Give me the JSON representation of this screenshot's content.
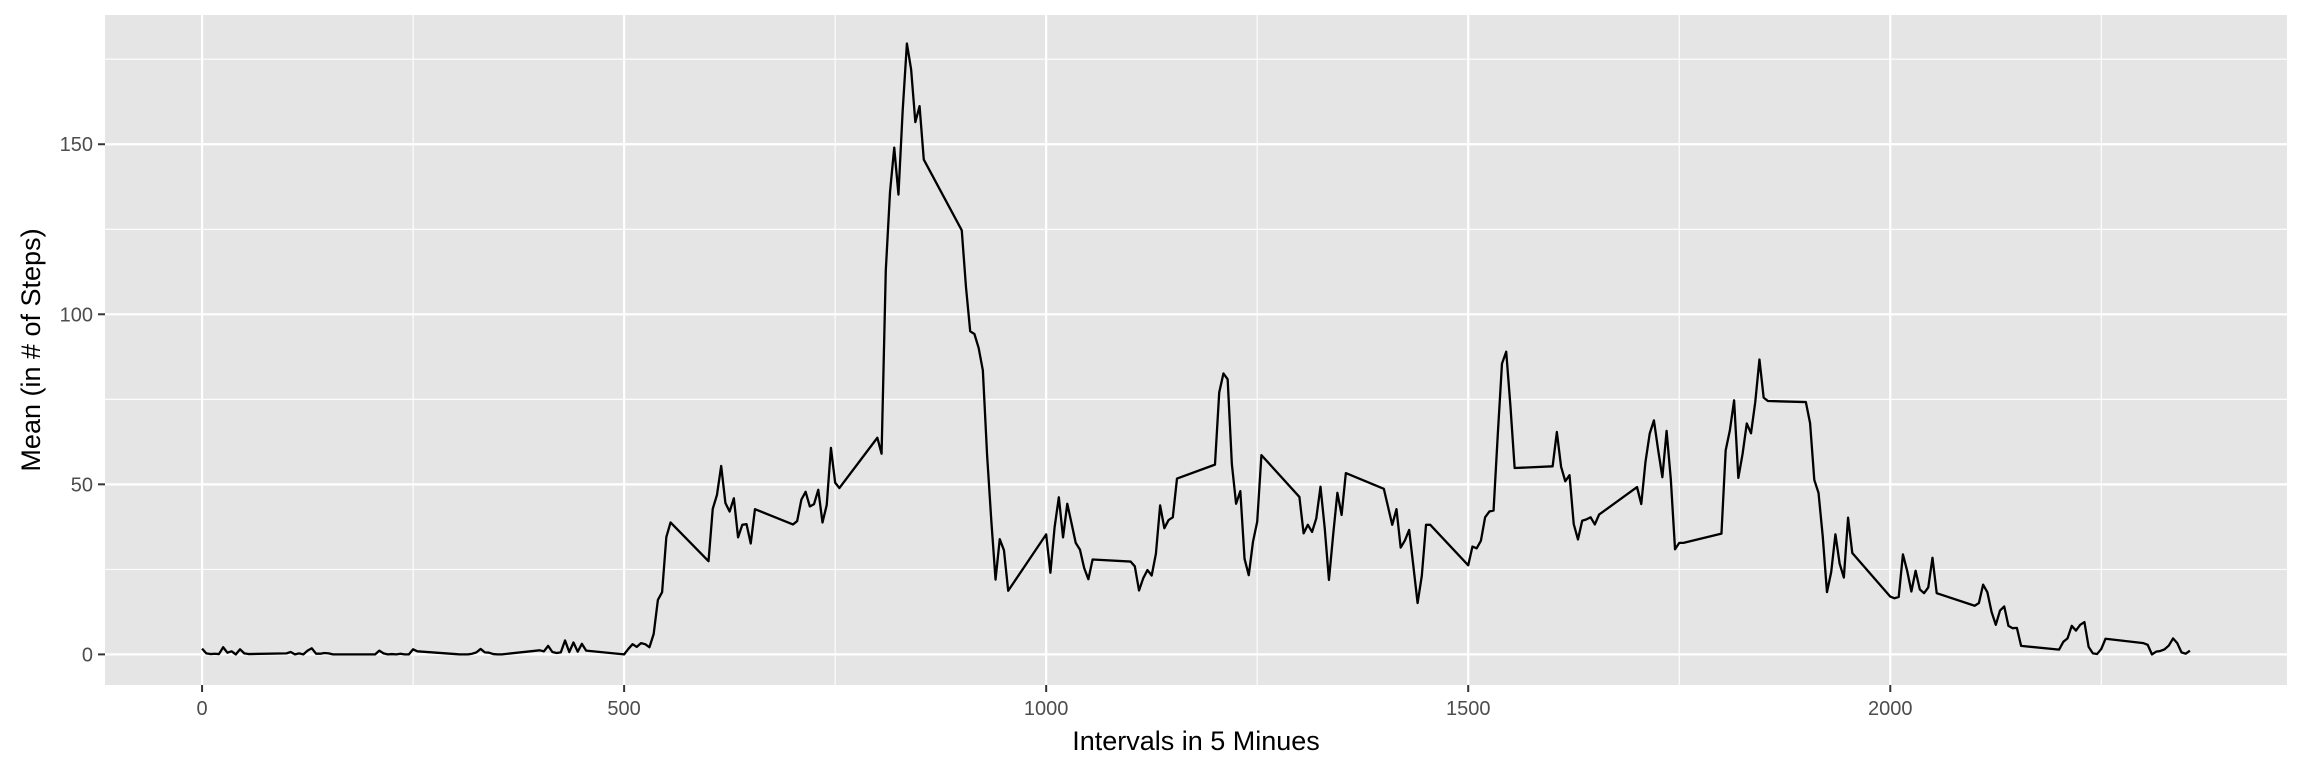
{
  "chart_data": {
    "type": "line",
    "title": "",
    "xlabel": "Intervals in 5 Minues",
    "ylabel": "Mean (in # of Steps)",
    "xlim": [
      -115,
      2470
    ],
    "ylim": [
      -9,
      188
    ],
    "x_ticks": [
      0,
      500,
      1000,
      1500,
      2000
    ],
    "x_tick_labels": [
      "0",
      "500",
      "1000",
      "1500",
      "2000"
    ],
    "y_ticks": [
      0,
      50,
      100,
      150
    ],
    "y_tick_labels": [
      "0",
      "50",
      "100",
      "150"
    ],
    "grid": true,
    "legend": "none",
    "colors": {
      "panel": "#e5e5e5",
      "grid": "#ffffff",
      "line": "#000000"
    },
    "series": [
      {
        "values": [
          [
            0,
            1.7
          ],
          [
            5,
            0.3
          ],
          [
            10,
            0.1
          ],
          [
            15,
            0.2
          ],
          [
            20,
            0.1
          ],
          [
            25,
            2.1
          ],
          [
            30,
            0.5
          ],
          [
            35,
            0.9
          ],
          [
            40,
            0
          ],
          [
            45,
            1.5
          ],
          [
            50,
            0.3
          ],
          [
            55,
            0.1
          ],
          [
            100,
            0.3
          ],
          [
            105,
            0.7
          ],
          [
            110,
            0
          ],
          [
            115,
            0.3
          ],
          [
            120,
            0
          ],
          [
            125,
            1.1
          ],
          [
            130,
            1.8
          ],
          [
            135,
            0.2
          ],
          [
            140,
            0.2
          ],
          [
            145,
            0.4
          ],
          [
            150,
            0.3
          ],
          [
            155,
            0
          ],
          [
            200,
            0
          ],
          [
            205,
            0
          ],
          [
            210,
            1.1
          ],
          [
            215,
            0.3
          ],
          [
            220,
            0
          ],
          [
            225,
            0.1
          ],
          [
            230,
            0
          ],
          [
            235,
            0.2
          ],
          [
            240,
            0
          ],
          [
            245,
            0
          ],
          [
            250,
            1.5
          ],
          [
            255,
            0.9
          ],
          [
            300,
            0.1
          ],
          [
            305,
            0
          ],
          [
            310,
            0
          ],
          [
            315,
            0
          ],
          [
            320,
            0.2
          ],
          [
            325,
            0.6
          ],
          [
            330,
            1.6
          ],
          [
            335,
            0.6
          ],
          [
            340,
            0.5
          ],
          [
            345,
            0.1
          ],
          [
            350,
            0
          ],
          [
            355,
            0
          ],
          [
            400,
            1.2
          ],
          [
            405,
            0.9
          ],
          [
            410,
            2.5
          ],
          [
            415,
            0.7
          ],
          [
            420,
            0.4
          ],
          [
            425,
            0.6
          ],
          [
            430,
            4.1
          ],
          [
            435,
            0.7
          ],
          [
            440,
            3.5
          ],
          [
            445,
            0.8
          ],
          [
            450,
            3.1
          ],
          [
            455,
            1.1
          ],
          [
            500,
            0
          ],
          [
            505,
            1.6
          ],
          [
            510,
            3
          ],
          [
            515,
            2.2
          ],
          [
            520,
            3.3
          ],
          [
            525,
            3
          ],
          [
            530,
            2.1
          ],
          [
            535,
            6
          ],
          [
            540,
            16
          ],
          [
            545,
            18.3
          ],
          [
            550,
            34.5
          ],
          [
            555,
            38.8
          ],
          [
            600,
            27.4
          ],
          [
            605,
            42.8
          ],
          [
            610,
            46.9
          ],
          [
            615,
            55.4
          ],
          [
            620,
            44.5
          ],
          [
            625,
            42
          ],
          [
            630,
            45.9
          ],
          [
            635,
            34.4
          ],
          [
            640,
            38.1
          ],
          [
            645,
            38.3
          ],
          [
            650,
            32.6
          ],
          [
            655,
            42.7
          ],
          [
            700,
            38.2
          ],
          [
            705,
            39.2
          ],
          [
            710,
            45.5
          ],
          [
            715,
            47.8
          ],
          [
            720,
            43.5
          ],
          [
            725,
            44.2
          ],
          [
            730,
            48.4
          ],
          [
            735,
            38.8
          ],
          [
            740,
            43.9
          ],
          [
            745,
            60.7
          ],
          [
            750,
            50.5
          ],
          [
            755,
            48.9
          ],
          [
            800,
            63.7
          ],
          [
            805,
            59
          ],
          [
            810,
            112.9
          ],
          [
            815,
            135.9
          ],
          [
            820,
            149
          ],
          [
            825,
            135.2
          ],
          [
            830,
            159.9
          ],
          [
            835,
            179.6
          ],
          [
            840,
            172
          ],
          [
            845,
            156.5
          ],
          [
            850,
            161.2
          ],
          [
            855,
            145.5
          ],
          [
            900,
            124.7
          ],
          [
            905,
            108
          ],
          [
            910,
            95
          ],
          [
            915,
            94.2
          ],
          [
            920,
            90.1
          ],
          [
            925,
            83.5
          ],
          [
            930,
            58.6
          ],
          [
            935,
            39.3
          ],
          [
            940,
            22
          ],
          [
            945,
            33.9
          ],
          [
            950,
            30.6
          ],
          [
            955,
            18.7
          ],
          [
            1000,
            35.3
          ],
          [
            1005,
            24
          ],
          [
            1010,
            37.4
          ],
          [
            1015,
            46.2
          ],
          [
            1020,
            34.4
          ],
          [
            1025,
            44.3
          ],
          [
            1030,
            38.6
          ],
          [
            1035,
            32.8
          ],
          [
            1040,
            30.8
          ],
          [
            1045,
            25.4
          ],
          [
            1050,
            22.1
          ],
          [
            1055,
            27.9
          ],
          [
            1100,
            27.3
          ],
          [
            1105,
            25.9
          ],
          [
            1110,
            18.8
          ],
          [
            1115,
            22.4
          ],
          [
            1120,
            24.8
          ],
          [
            1125,
            23.2
          ],
          [
            1130,
            29.6
          ],
          [
            1135,
            43.8
          ],
          [
            1140,
            37.1
          ],
          [
            1145,
            39.5
          ],
          [
            1150,
            40.3
          ],
          [
            1155,
            51.7
          ],
          [
            1200,
            55.8
          ],
          [
            1205,
            77
          ],
          [
            1210,
            82.6
          ],
          [
            1215,
            80.9
          ],
          [
            1220,
            55.9
          ],
          [
            1225,
            44.3
          ],
          [
            1230,
            48
          ],
          [
            1235,
            28.1
          ],
          [
            1240,
            23.3
          ],
          [
            1245,
            33.1
          ],
          [
            1250,
            39
          ],
          [
            1255,
            58.6
          ],
          [
            1300,
            46.3
          ],
          [
            1305,
            35.6
          ],
          [
            1310,
            38.1
          ],
          [
            1315,
            36
          ],
          [
            1320,
            40
          ],
          [
            1325,
            49.3
          ],
          [
            1330,
            37.1
          ],
          [
            1335,
            21.9
          ],
          [
            1340,
            35.2
          ],
          [
            1345,
            47.5
          ],
          [
            1350,
            41
          ],
          [
            1355,
            53.3
          ],
          [
            1400,
            48.7
          ],
          [
            1405,
            43.4
          ],
          [
            1410,
            38.1
          ],
          [
            1415,
            42.7
          ],
          [
            1420,
            31.4
          ],
          [
            1425,
            33.5
          ],
          [
            1430,
            36.6
          ],
          [
            1435,
            26
          ],
          [
            1440,
            15.1
          ],
          [
            1445,
            23.1
          ],
          [
            1450,
            38.1
          ],
          [
            1455,
            38.1
          ],
          [
            1500,
            26.2
          ],
          [
            1505,
            31.7
          ],
          [
            1510,
            31.2
          ],
          [
            1515,
            33.4
          ],
          [
            1520,
            40.3
          ],
          [
            1525,
            42
          ],
          [
            1530,
            42.3
          ],
          [
            1535,
            64.6
          ],
          [
            1540,
            85.5
          ],
          [
            1545,
            89
          ],
          [
            1550,
            73
          ],
          [
            1555,
            54.8
          ],
          [
            1600,
            55.3
          ],
          [
            1605,
            65.4
          ],
          [
            1610,
            55.2
          ],
          [
            1615,
            50.9
          ],
          [
            1620,
            52.7
          ],
          [
            1625,
            38.3
          ],
          [
            1630,
            33.8
          ],
          [
            1635,
            39.3
          ],
          [
            1640,
            39.7
          ],
          [
            1645,
            40.3
          ],
          [
            1650,
            38.2
          ],
          [
            1655,
            41.1
          ],
          [
            1700,
            49.2
          ],
          [
            1705,
            44.2
          ],
          [
            1710,
            56.6
          ],
          [
            1715,
            64.9
          ],
          [
            1720,
            68.8
          ],
          [
            1725,
            60.1
          ],
          [
            1730,
            52.1
          ],
          [
            1735,
            65.7
          ],
          [
            1740,
            51.5
          ],
          [
            1745,
            30.9
          ],
          [
            1750,
            32.8
          ],
          [
            1755,
            32.8
          ],
          [
            1800,
            35.5
          ],
          [
            1805,
            60
          ],
          [
            1810,
            65.9
          ],
          [
            1815,
            74.7
          ],
          [
            1820,
            51.9
          ],
          [
            1825,
            58.9
          ],
          [
            1830,
            67.9
          ],
          [
            1835,
            65
          ],
          [
            1840,
            74.1
          ],
          [
            1845,
            86.7
          ],
          [
            1850,
            75.5
          ],
          [
            1855,
            74.5
          ],
          [
            1900,
            74.2
          ],
          [
            1905,
            68
          ],
          [
            1910,
            51.3
          ],
          [
            1915,
            47.5
          ],
          [
            1920,
            34.7
          ],
          [
            1925,
            18.3
          ],
          [
            1930,
            24.2
          ],
          [
            1935,
            35.3
          ],
          [
            1940,
            26.7
          ],
          [
            1945,
            22.6
          ],
          [
            1950,
            40.2
          ],
          [
            1955,
            29.8
          ],
          [
            2000,
            17
          ],
          [
            2005,
            16.5
          ],
          [
            2010,
            16.9
          ],
          [
            2015,
            29.4
          ],
          [
            2020,
            24.6
          ],
          [
            2025,
            18.5
          ],
          [
            2030,
            24.6
          ],
          [
            2035,
            19.1
          ],
          [
            2040,
            18
          ],
          [
            2045,
            19.7
          ],
          [
            2050,
            28.4
          ],
          [
            2055,
            18
          ],
          [
            2100,
            14.3
          ],
          [
            2105,
            15.1
          ],
          [
            2110,
            20.5
          ],
          [
            2115,
            18.3
          ],
          [
            2120,
            12.5
          ],
          [
            2125,
            8.7
          ],
          [
            2130,
            12.9
          ],
          [
            2135,
            14.1
          ],
          [
            2140,
            8.4
          ],
          [
            2145,
            7.7
          ],
          [
            2150,
            7.8
          ],
          [
            2155,
            2.5
          ],
          [
            2200,
            1.4
          ],
          [
            2205,
            3.7
          ],
          [
            2210,
            4.7
          ],
          [
            2215,
            8.4
          ],
          [
            2220,
            7
          ],
          [
            2225,
            8.7
          ],
          [
            2230,
            9.5
          ],
          [
            2235,
            2.2
          ],
          [
            2240,
            0.3
          ],
          [
            2245,
            0.1
          ],
          [
            2250,
            1.6
          ],
          [
            2255,
            4.6
          ],
          [
            2300,
            3.3
          ],
          [
            2305,
            2.8
          ],
          [
            2310,
            0
          ],
          [
            2315,
            0.8
          ],
          [
            2320,
            1
          ],
          [
            2325,
            1.5
          ],
          [
            2330,
            2.6
          ],
          [
            2335,
            4.7
          ],
          [
            2340,
            3.3
          ],
          [
            2345,
            0.6
          ],
          [
            2350,
            0.2
          ],
          [
            2355,
            1.1
          ]
        ]
      }
    ]
  }
}
